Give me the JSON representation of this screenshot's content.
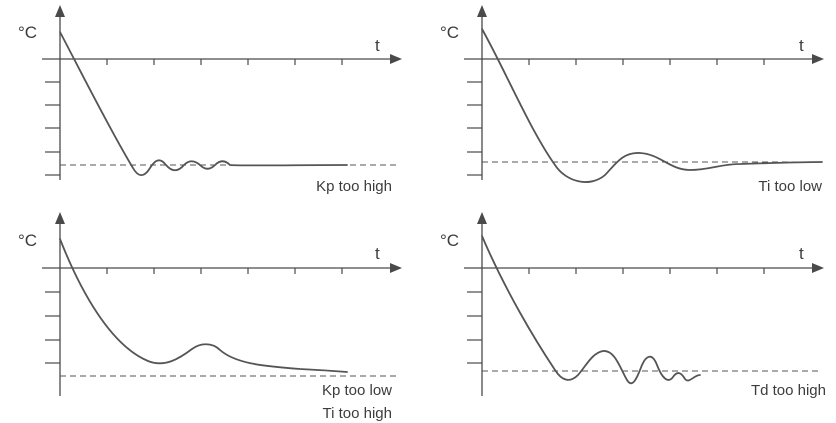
{
  "panels": [
    {
      "id": "kp-high",
      "y_label": "°C",
      "x_label": "t",
      "caption": [
        "Kp too high"
      ]
    },
    {
      "id": "ti-low",
      "y_label": "°C",
      "x_label": "t",
      "caption": [
        "Ti too low"
      ]
    },
    {
      "id": "kp-low-ti-high",
      "y_label": "°C",
      "x_label": "t",
      "caption": [
        "Kp too low",
        "Ti too high"
      ]
    },
    {
      "id": "td-high",
      "y_label": "°C",
      "x_label": "t",
      "caption": [
        "Td too high"
      ]
    }
  ]
}
